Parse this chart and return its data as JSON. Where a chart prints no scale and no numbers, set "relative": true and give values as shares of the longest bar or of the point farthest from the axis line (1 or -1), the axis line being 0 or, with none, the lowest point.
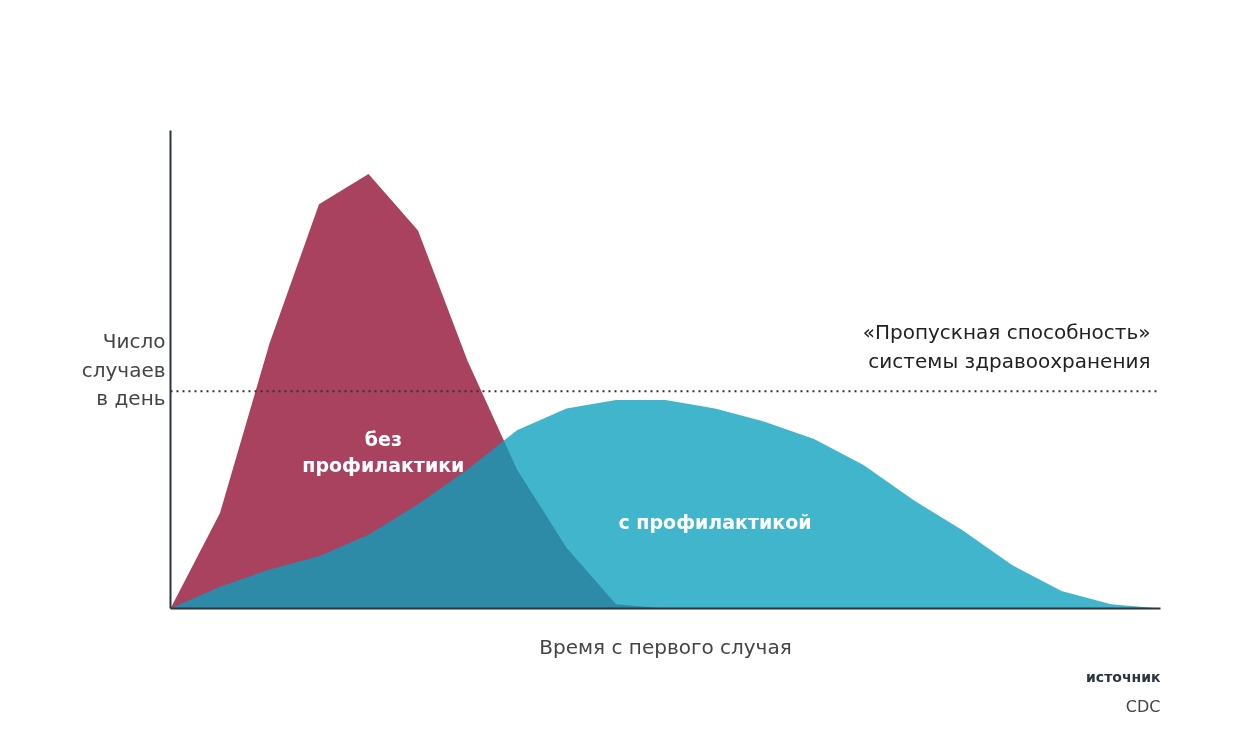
{
  "chart_data": {
    "type": "area",
    "relative": true,
    "xlabel": "Время с первого случая",
    "ylabel": "Число\nслучаев\nв день",
    "categories": [
      null,
      null,
      null,
      null,
      null,
      null,
      null,
      null,
      null,
      null,
      null,
      null,
      null,
      null,
      null,
      null,
      null,
      null,
      null,
      null,
      null
    ],
    "series": [
      {
        "name": "без профилактики",
        "color": "#a8425f",
        "values": [
          0,
          0.22,
          0.61,
          0.93,
          1.0,
          0.87,
          0.57,
          0.32,
          0.14,
          0.01,
          0,
          0,
          0,
          0,
          0,
          0,
          0,
          0,
          0,
          0,
          0
        ]
      },
      {
        "name": "с профилактикой",
        "color": "#0aa0bc",
        "values": [
          0,
          0.05,
          0.09,
          0.12,
          0.17,
          0.24,
          0.32,
          0.41,
          0.46,
          0.48,
          0.48,
          0.46,
          0.43,
          0.39,
          0.33,
          0.25,
          0.18,
          0.1,
          0.04,
          0.01,
          0
        ]
      }
    ],
    "ref_lines": [
      {
        "axis": "y",
        "value": 0.5,
        "label": "«Пропускная способность»\nсистемы здравоохранения",
        "line_style": "dotted",
        "color": "#333333"
      }
    ],
    "annotations": [
      "источник",
      "CDC"
    ],
    "grid": false
  }
}
